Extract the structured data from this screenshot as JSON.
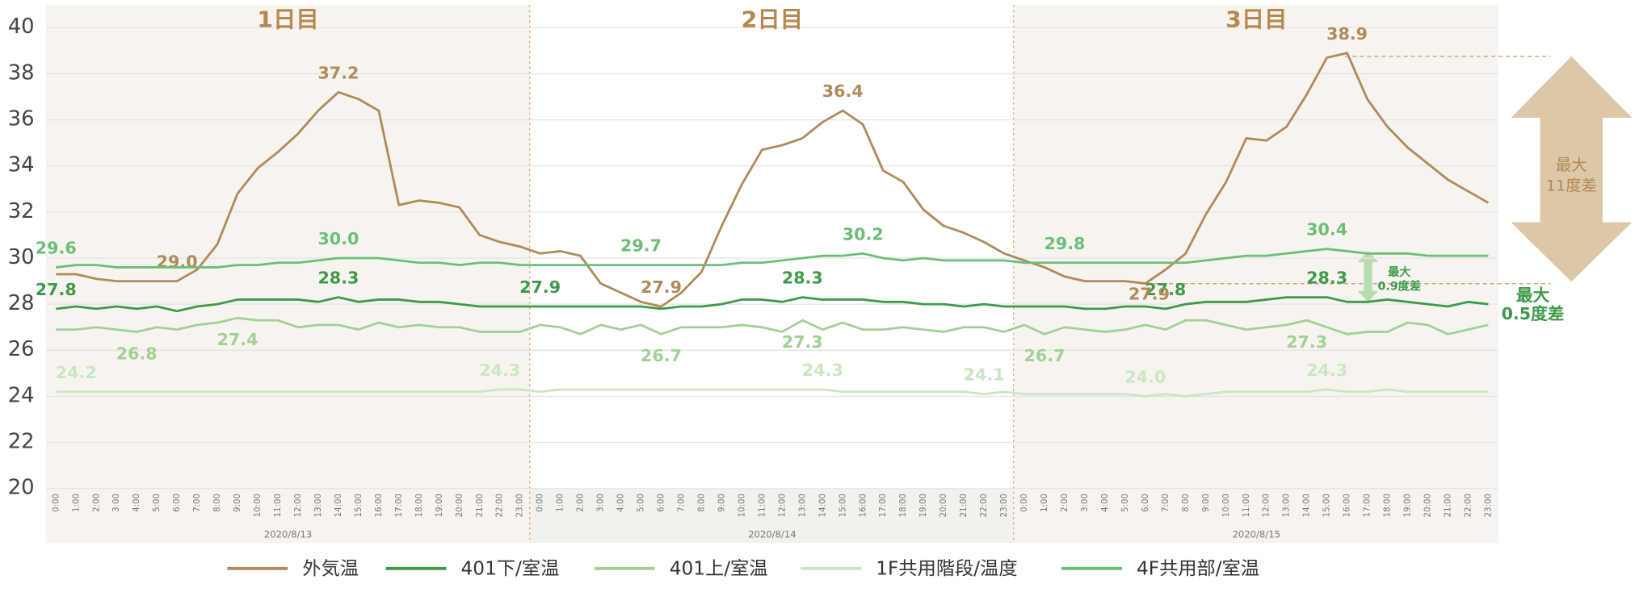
{
  "chart_data": {
    "type": "line",
    "days": [
      "1日目",
      "2日目",
      "3日目"
    ],
    "dates": [
      "2020/8/13",
      "2020/8/14",
      "2020/8/15"
    ],
    "categories": [
      "0:00",
      "1:00",
      "2:00",
      "3:00",
      "4:00",
      "5:00",
      "6:00",
      "7:00",
      "8:00",
      "9:00",
      "10:00",
      "11:00",
      "12:00",
      "13:00",
      "14:00",
      "15:00",
      "16:00",
      "17:00",
      "18:00",
      "19:00",
      "20:00",
      "21:00",
      "22:00",
      "23:00",
      "0:00",
      "1:00",
      "2:00",
      "3:00",
      "4:00",
      "5:00",
      "6:00",
      "7:00",
      "8:00",
      "9:00",
      "10:00",
      "11:00",
      "12:00",
      "13:00",
      "14:00",
      "15:00",
      "16:00",
      "17:00",
      "18:00",
      "19:00",
      "20:00",
      "21:00",
      "22:00",
      "23:00",
      "0:00",
      "1:00",
      "2:00",
      "3:00",
      "4:00",
      "5:00",
      "6:00",
      "7:00",
      "8:00",
      "9:00",
      "10:00",
      "11:00",
      "12:00",
      "13:00",
      "14:00",
      "15:00",
      "16:00",
      "17:00",
      "18:00",
      "19:00",
      "20:00",
      "21:00",
      "22:00",
      "23:00"
    ],
    "ylim": [
      20,
      40
    ],
    "yticks": [
      20,
      22,
      24,
      26,
      28,
      30,
      32,
      34,
      36,
      38,
      40
    ],
    "grid": true,
    "series": [
      {
        "name": "外気温",
        "color": "#b08a5a",
        "values": [
          29.3,
          29.3,
          29.1,
          29.0,
          29.0,
          29.0,
          29.0,
          29.5,
          30.6,
          32.8,
          33.9,
          34.6,
          35.4,
          36.4,
          37.2,
          36.9,
          36.4,
          32.3,
          32.5,
          32.4,
          32.2,
          31.0,
          30.7,
          30.5,
          30.2,
          30.3,
          30.1,
          28.9,
          28.5,
          28.1,
          27.9,
          28.5,
          29.4,
          31.4,
          33.2,
          34.7,
          34.9,
          35.2,
          35.9,
          36.4,
          35.8,
          33.8,
          33.3,
          32.1,
          31.4,
          31.1,
          30.7,
          30.2,
          29.9,
          29.6,
          29.2,
          29.0,
          29.0,
          29.0,
          28.9,
          29.5,
          30.2,
          31.9,
          33.3,
          35.2,
          35.1,
          35.7,
          37.1,
          38.7,
          38.9,
          36.9,
          35.7,
          34.8,
          34.1,
          33.4,
          32.9,
          32.4
        ],
        "value_labels": [
          null,
          null,
          null,
          null,
          null,
          null,
          "29.0",
          null,
          null,
          null,
          null,
          null,
          null,
          null,
          "37.2",
          null,
          null,
          null,
          null,
          null,
          null,
          null,
          null,
          null,
          null,
          null,
          null,
          null,
          null,
          null,
          "27.9",
          null,
          null,
          null,
          null,
          null,
          null,
          null,
          null,
          "36.4",
          null,
          null,
          null,
          null,
          null,
          null,
          null,
          null,
          null,
          null,
          null,
          null,
          null,
          null,
          null,
          null,
          null,
          null,
          null,
          null,
          null,
          null,
          null,
          null,
          "38.9",
          null,
          null,
          null,
          null,
          null,
          null,
          null
        ]
      },
      {
        "name": "401下/室温",
        "color": "#3e9a4a",
        "values": [
          27.8,
          27.9,
          27.8,
          27.9,
          27.8,
          27.9,
          27.7,
          27.9,
          28.0,
          28.2,
          28.2,
          28.2,
          28.2,
          28.1,
          28.3,
          28.1,
          28.2,
          28.2,
          28.1,
          28.1,
          28.0,
          27.9,
          27.9,
          27.9,
          27.9,
          27.9,
          27.9,
          27.9,
          27.9,
          27.9,
          27.8,
          27.9,
          27.9,
          28.0,
          28.2,
          28.2,
          28.1,
          28.3,
          28.2,
          28.2,
          28.2,
          28.1,
          28.1,
          28.0,
          28.0,
          27.9,
          28.0,
          27.9,
          27.9,
          27.9,
          27.9,
          27.8,
          27.8,
          27.9,
          27.9,
          27.8,
          28.0,
          28.1,
          28.1,
          28.1,
          28.2,
          28.3,
          28.3,
          28.3,
          28.1,
          28.1,
          28.2,
          28.1,
          28.0,
          27.9,
          28.1,
          28.0
        ],
        "value_labels": [
          "27.8",
          null,
          null,
          null,
          null,
          null,
          null,
          null,
          null,
          null,
          null,
          null,
          null,
          null,
          "28.3",
          null,
          null,
          null,
          null,
          null,
          null,
          null,
          null,
          null,
          "27.9",
          null,
          null,
          null,
          null,
          null,
          null,
          null,
          null,
          null,
          null,
          null,
          null,
          "28.3",
          null,
          null,
          null,
          null,
          null,
          null,
          null,
          null,
          null,
          null,
          null,
          null,
          null,
          null,
          null,
          null,
          null,
          "27.8",
          null,
          null,
          null,
          null,
          null,
          null,
          null,
          "28.3",
          null,
          null,
          null,
          null,
          null,
          null,
          null,
          null
        ]
      },
      {
        "name": "401上/室温",
        "color": "#a3cf98",
        "values": [
          26.9,
          26.9,
          27.0,
          26.9,
          26.8,
          27.0,
          26.9,
          27.1,
          27.2,
          27.4,
          27.3,
          27.3,
          27.0,
          27.1,
          27.1,
          26.9,
          27.2,
          27.0,
          27.1,
          27.0,
          27.0,
          26.8,
          26.8,
          26.8,
          27.1,
          27.0,
          26.7,
          27.1,
          26.9,
          27.1,
          26.7,
          27.0,
          27.0,
          27.0,
          27.1,
          27.0,
          26.8,
          27.3,
          26.9,
          27.2,
          26.9,
          26.9,
          27.0,
          26.9,
          26.8,
          27.0,
          27.0,
          26.8,
          27.1,
          26.7,
          27.0,
          26.9,
          26.8,
          26.9,
          27.1,
          26.9,
          27.3,
          27.3,
          27.1,
          26.9,
          27.0,
          27.1,
          27.3,
          27.0,
          26.7,
          26.8,
          26.8,
          27.2,
          27.1,
          26.7,
          26.9,
          27.1
        ],
        "value_labels": [
          null,
          null,
          null,
          null,
          "26.8",
          null,
          null,
          null,
          null,
          "27.4",
          null,
          null,
          null,
          null,
          null,
          null,
          null,
          null,
          null,
          null,
          null,
          null,
          null,
          null,
          null,
          null,
          null,
          null,
          null,
          null,
          "26.7",
          null,
          null,
          null,
          null,
          null,
          null,
          "27.3",
          null,
          null,
          null,
          null,
          null,
          null,
          null,
          null,
          null,
          null,
          null,
          "26.7",
          null,
          null,
          null,
          null,
          null,
          null,
          null,
          null,
          null,
          null,
          null,
          null,
          "27.3",
          null,
          null,
          null,
          null,
          null,
          null,
          null,
          null,
          null
        ]
      },
      {
        "name": "1F共用階段/温度",
        "color": "#cbe6c3",
        "values": [
          24.2,
          24.2,
          24.2,
          24.2,
          24.2,
          24.2,
          24.2,
          24.2,
          24.2,
          24.2,
          24.2,
          24.2,
          24.2,
          24.2,
          24.2,
          24.2,
          24.2,
          24.2,
          24.2,
          24.2,
          24.2,
          24.2,
          24.3,
          24.3,
          24.2,
          24.3,
          24.3,
          24.3,
          24.3,
          24.3,
          24.3,
          24.3,
          24.3,
          24.3,
          24.3,
          24.3,
          24.3,
          24.3,
          24.3,
          24.2,
          24.2,
          24.2,
          24.2,
          24.2,
          24.2,
          24.2,
          24.1,
          24.2,
          24.1,
          24.1,
          24.1,
          24.1,
          24.1,
          24.1,
          24.0,
          24.1,
          24.0,
          24.1,
          24.2,
          24.2,
          24.2,
          24.2,
          24.2,
          24.3,
          24.2,
          24.2,
          24.3,
          24.2,
          24.2,
          24.2,
          24.2,
          24.2
        ],
        "value_labels": [
          null,
          "24.2",
          null,
          null,
          null,
          null,
          null,
          null,
          null,
          null,
          null,
          null,
          null,
          null,
          null,
          null,
          null,
          null,
          null,
          null,
          null,
          null,
          "24.3",
          null,
          null,
          null,
          null,
          null,
          null,
          null,
          null,
          null,
          null,
          null,
          null,
          null,
          null,
          null,
          "24.3",
          null,
          null,
          null,
          null,
          null,
          null,
          null,
          "24.1",
          null,
          null,
          null,
          null,
          null,
          null,
          null,
          "24.0",
          null,
          null,
          null,
          null,
          null,
          null,
          null,
          null,
          "24.3",
          null,
          null,
          null,
          null,
          null,
          null,
          null,
          null
        ]
      },
      {
        "name": "4F共用部/室温",
        "color": "#6abf78",
        "values": [
          29.6,
          29.7,
          29.7,
          29.6,
          29.6,
          29.6,
          29.6,
          29.6,
          29.6,
          29.7,
          29.7,
          29.8,
          29.8,
          29.9,
          30.0,
          30.0,
          30.0,
          29.9,
          29.8,
          29.8,
          29.7,
          29.8,
          29.8,
          29.7,
          29.7,
          29.7,
          29.7,
          29.7,
          29.7,
          29.7,
          29.7,
          29.7,
          29.7,
          29.7,
          29.8,
          29.8,
          29.9,
          30.0,
          30.1,
          30.1,
          30.2,
          30.0,
          29.9,
          30.0,
          29.9,
          29.9,
          29.9,
          29.9,
          29.8,
          29.8,
          29.8,
          29.8,
          29.8,
          29.8,
          29.8,
          29.8,
          29.8,
          29.9,
          30.0,
          30.1,
          30.1,
          30.2,
          30.3,
          30.4,
          30.3,
          30.2,
          30.2,
          30.2,
          30.1,
          30.1,
          30.1,
          30.1
        ],
        "value_labels": [
          "29.6",
          null,
          null,
          null,
          null,
          null,
          null,
          null,
          null,
          null,
          null,
          null,
          null,
          null,
          "30.0",
          null,
          null,
          null,
          null,
          null,
          null,
          null,
          null,
          null,
          null,
          null,
          null,
          null,
          null,
          "29.7",
          null,
          null,
          null,
          null,
          null,
          null,
          null,
          null,
          null,
          null,
          "30.2",
          null,
          null,
          null,
          null,
          null,
          null,
          null,
          null,
          null,
          "29.8",
          null,
          null,
          null,
          null,
          null,
          null,
          null,
          null,
          null,
          null,
          null,
          null,
          "30.4",
          null,
          null,
          null,
          null,
          null,
          null,
          null,
          null
        ]
      }
    ],
    "annotations": [
      {
        "lines": [
          "最大",
          "11度差"
        ]
      },
      {
        "lines": [
          "最大",
          "0.9度差"
        ]
      },
      {
        "lines": [
          "最大",
          "0.5度差"
        ]
      },
      {
        "lines": [
          "27.9"
        ]
      }
    ]
  }
}
